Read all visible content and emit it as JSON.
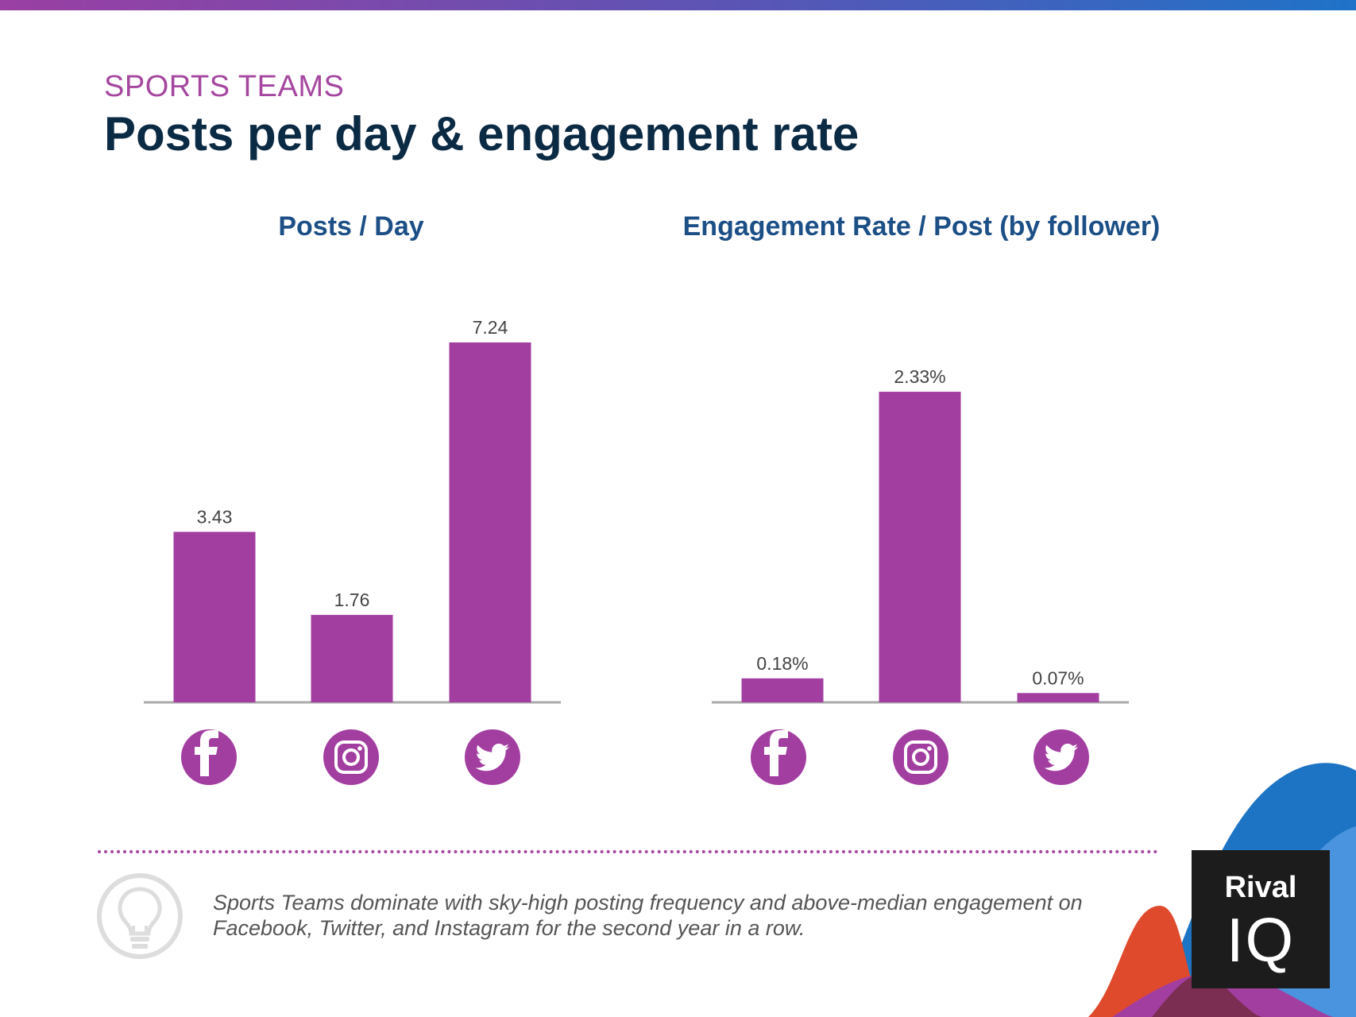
{
  "header": {
    "eyebrow": "SPORTS TEAMS",
    "title": "Posts per day & engagement rate"
  },
  "chart_data": [
    {
      "type": "bar",
      "title": "Posts / Day",
      "categories": [
        "Facebook",
        "Instagram",
        "Twitter"
      ],
      "category_icons": [
        "facebook-icon",
        "instagram-icon",
        "twitter-icon"
      ],
      "values": [
        3.43,
        1.76,
        7.24
      ],
      "value_labels": [
        "3.43",
        "1.76",
        "7.24"
      ],
      "xlabel": "",
      "ylabel": "",
      "ylim": [
        0,
        7.24
      ],
      "grid": false,
      "legend": "none"
    },
    {
      "type": "bar",
      "title": "Engagement Rate / Post (by follower)",
      "categories": [
        "Facebook",
        "Instagram",
        "Twitter"
      ],
      "category_icons": [
        "facebook-icon",
        "instagram-icon",
        "twitter-icon"
      ],
      "values": [
        0.18,
        2.33,
        0.07
      ],
      "value_labels": [
        "0.18%",
        "2.33%",
        "0.07%"
      ],
      "xlabel": "",
      "ylabel": "",
      "ylim": [
        0,
        2.7
      ],
      "grid": false,
      "legend": "none"
    }
  ],
  "footer": {
    "note_line1": "Sports Teams dominate with sky-high posting frequency and above-median engagement on",
    "note_line2": "Facebook, Twitter, and Instagram for the second year in a row.",
    "logo_top": "Rival",
    "logo_bottom": "IQ"
  },
  "colors": {
    "accent": "#a33ea1",
    "title": "#0b2a44",
    "chart_title": "#1b4f86"
  }
}
